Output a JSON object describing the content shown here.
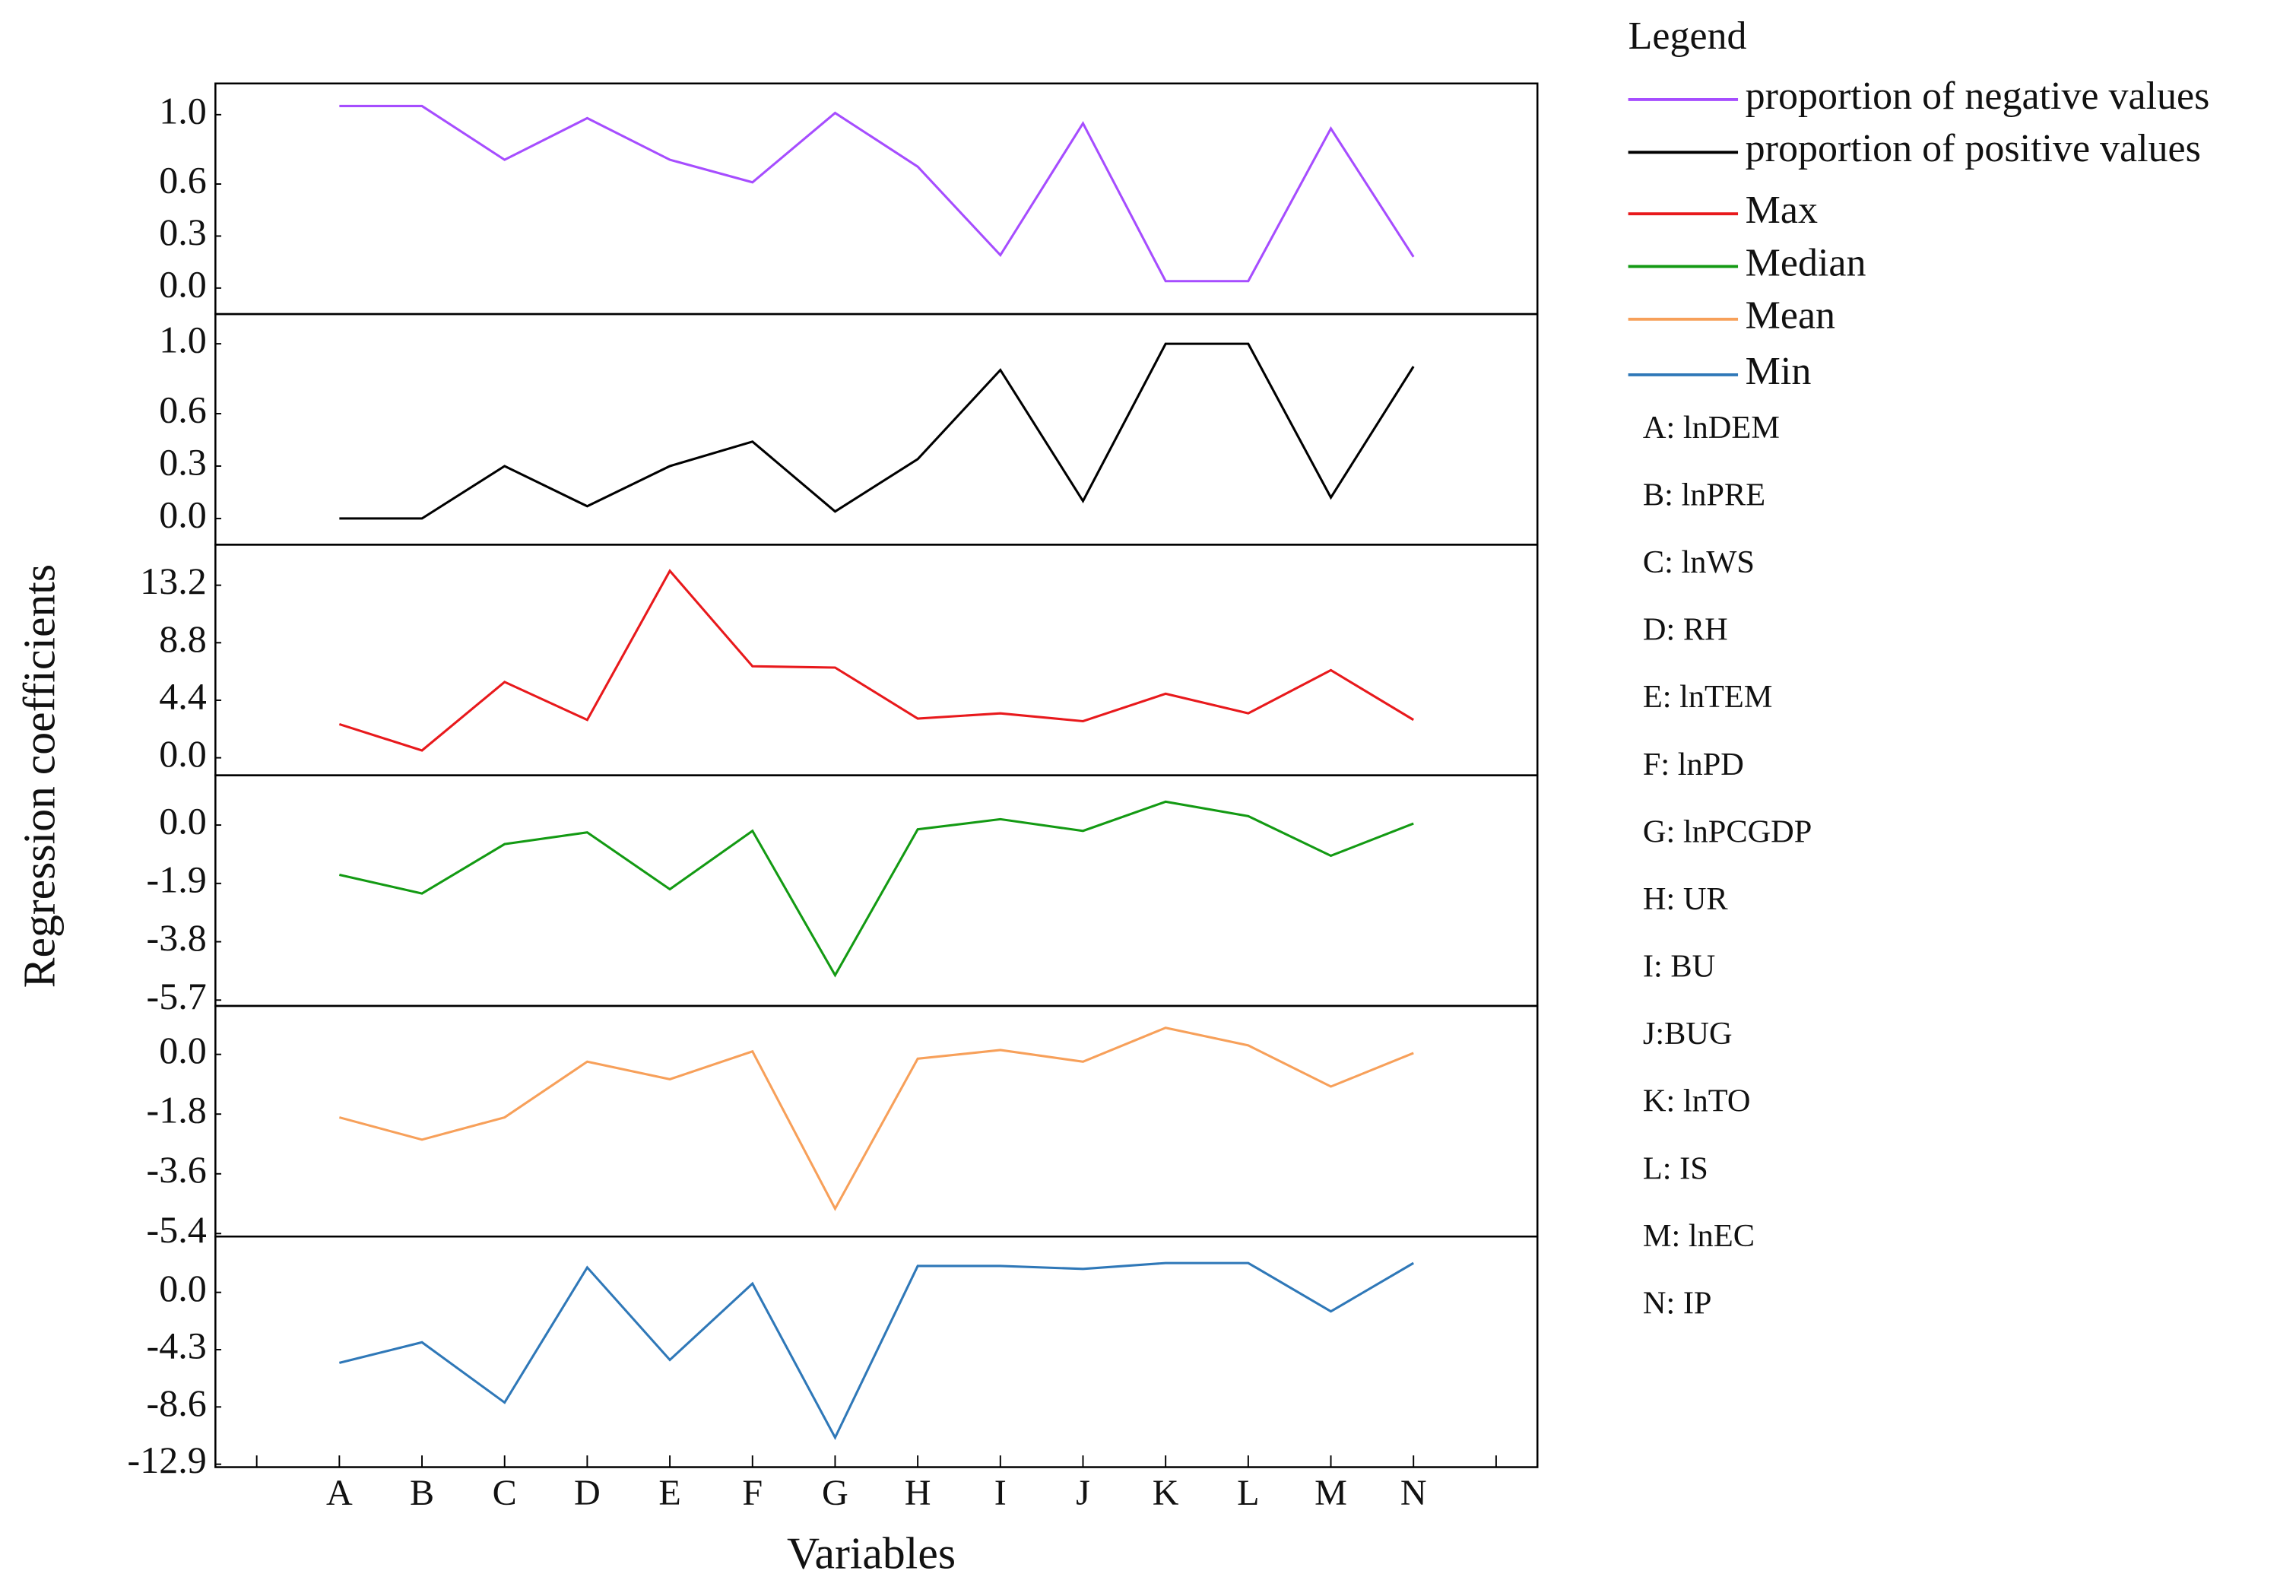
{
  "chart_data": {
    "type": "line",
    "ylabel": "Regression coefficients",
    "xlabel": "Variables",
    "legend_title": "Legend",
    "categories": [
      null,
      "A",
      "B",
      "C",
      "D",
      "E",
      "F",
      "G",
      "H",
      "I",
      "J",
      "K",
      "L",
      "M",
      "N",
      null
    ],
    "series": [
      {
        "name": "proportion of negative values",
        "color": "#a64dff",
        "values": [
          null,
          1.05,
          1.05,
          0.74,
          0.98,
          0.74,
          0.61,
          1.01,
          0.7,
          0.19,
          0.95,
          0.04,
          0.04,
          0.92,
          0.18,
          null
        ],
        "ylim": [
          -0.15,
          1.18
        ],
        "yticks": [
          {
            "value": 0,
            "label": "0.0"
          },
          0.3,
          0.6,
          {
            "value": 1,
            "label": "1.0"
          }
        ]
      },
      {
        "name": "proportion of positive values",
        "color": "#000000",
        "values": [
          null,
          0,
          0,
          0.3,
          0.07,
          0.3,
          0.44,
          0.04,
          0.34,
          0.85,
          0.1,
          1.0,
          1.0,
          0.12,
          0.87,
          null
        ],
        "ylim": [
          -0.15,
          1.17
        ],
        "yticks": [
          {
            "value": 0,
            "label": "0.0"
          },
          0.3,
          0.6,
          {
            "value": 1,
            "label": "1.0"
          }
        ]
      },
      {
        "name": "Max",
        "color": "#e8191c",
        "values": [
          null,
          2.57,
          0.56,
          5.8,
          2.9,
          14.3,
          7.0,
          6.9,
          3.0,
          3.4,
          2.8,
          4.9,
          3.4,
          6.7,
          2.9,
          null
        ],
        "ylim": [
          -1.34,
          16.3
        ],
        "yticks": [
          {
            "value": 0,
            "label": "0.0"
          },
          4.4,
          8.8,
          13.2
        ]
      },
      {
        "name": "Median",
        "color": "#139a13",
        "values": [
          null,
          -1.62,
          -2.23,
          -0.62,
          -0.24,
          -2.09,
          -0.19,
          -4.89,
          -0.14,
          0.19,
          -0.19,
          0.76,
          0.29,
          -1.0,
          0.05,
          null
        ],
        "ylim": [
          -5.89,
          1.62
        ],
        "yticks": [
          {
            "value": 0,
            "label": "0.0"
          },
          -1.9,
          -3.8,
          -5.7
        ]
      },
      {
        "name": "Mean",
        "color": "#f7a05a",
        "values": [
          null,
          -1.9,
          -2.57,
          -1.9,
          -0.22,
          -0.75,
          0.09,
          -4.65,
          -0.13,
          0.13,
          -0.22,
          0.8,
          0.27,
          -0.97,
          0.04,
          null
        ],
        "ylim": [
          -5.49,
          1.46
        ],
        "yticks": [
          {
            "value": 0,
            "label": "0.0"
          },
          -1.8,
          -3.6,
          -5.4
        ]
      },
      {
        "name": "Min",
        "color": "#2f78b8",
        "values": [
          null,
          -5.29,
          -3.75,
          -8.27,
          1.87,
          -5.07,
          0.66,
          -10.9,
          1.98,
          1.98,
          1.76,
          2.2,
          2.2,
          -1.43,
          2.2,
          null
        ],
        "ylim": [
          -13.12,
          4.19
        ],
        "yticks": [
          {
            "value": 0,
            "label": "0.0"
          },
          -4.3,
          -8.6,
          -12.9
        ]
      }
    ],
    "legend_notes": [
      "A: lnDEM",
      "B: lnPRE",
      "C: lnWS",
      "D: RH",
      "E: lnTEM",
      "F: lnPD",
      "G: lnPCGDP",
      "H: UR",
      "I: BU",
      "J:BUG",
      "K: lnTO",
      "L: IS",
      "M: lnEC",
      "N: IP"
    ]
  }
}
